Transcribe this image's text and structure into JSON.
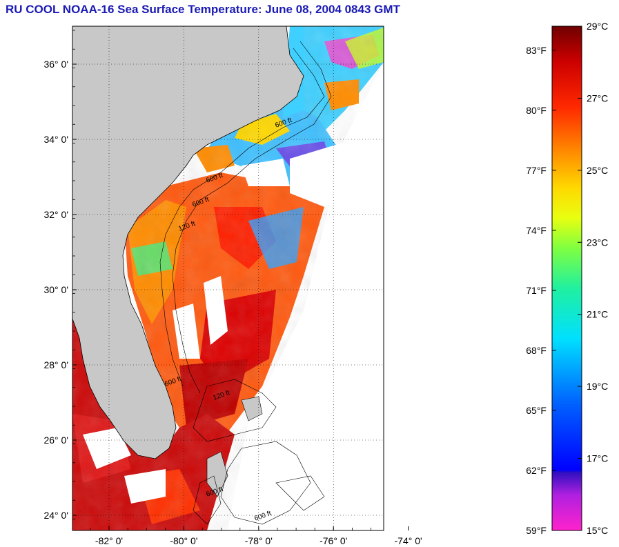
{
  "title": "RU COOL  NOAA-16  Sea Surface Temperature:  June 08, 2004 0843 GMT",
  "map": {
    "lat_ticks": [
      {
        "label": "36° 0'",
        "value": 36
      },
      {
        "label": "34° 0'",
        "value": 34
      },
      {
        "label": "32° 0'",
        "value": 32
      },
      {
        "label": "30° 0'",
        "value": 30
      },
      {
        "label": "28° 0'",
        "value": 28
      },
      {
        "label": "26° 0'",
        "value": 26
      },
      {
        "label": "24° 0'",
        "value": 24
      }
    ],
    "lon_ticks": [
      {
        "label": "-82° 0'",
        "value": -82
      },
      {
        "label": "-80° 0'",
        "value": -80
      },
      {
        "label": "-78° 0'",
        "value": -78
      },
      {
        "label": "-76° 0'",
        "value": -76
      },
      {
        "label": "-74° 0'",
        "value": -74
      }
    ],
    "contour_labels": [
      "600 ft",
      "600 ft",
      "120 ft",
      "600 ft",
      "600 ft",
      "120 ft",
      "600 ft",
      "600 ft"
    ],
    "colors": {
      "land": "#c8c8c8",
      "cloud": "#ffffff",
      "coast": "#000000"
    }
  },
  "colorbar": {
    "fahrenheit": [
      {
        "label": "83°F",
        "value": 83
      },
      {
        "label": "80°F",
        "value": 80
      },
      {
        "label": "77°F",
        "value": 77
      },
      {
        "label": "74°F",
        "value": 74
      },
      {
        "label": "71°F",
        "value": 71
      },
      {
        "label": "68°F",
        "value": 68
      },
      {
        "label": "65°F",
        "value": 65
      },
      {
        "label": "62°F",
        "value": 62
      },
      {
        "label": "59°F",
        "value": 59
      }
    ],
    "celsius": [
      {
        "label": "29°C",
        "value": 29
      },
      {
        "label": "27°C",
        "value": 27
      },
      {
        "label": "25°C",
        "value": 25
      },
      {
        "label": "23°C",
        "value": 23
      },
      {
        "label": "21°C",
        "value": 21
      },
      {
        "label": "19°C",
        "value": 19
      },
      {
        "label": "17°C",
        "value": 17
      },
      {
        "label": "15°C",
        "value": 15
      }
    ],
    "range_c": [
      15,
      29
    ],
    "colors": [
      "#ff22cc",
      "#7a20e0",
      "#1010ff",
      "#0090ff",
      "#00e8ff",
      "#40f080",
      "#c8ff20",
      "#ffe000",
      "#ff8c00",
      "#ff2000",
      "#dd0000",
      "#780000"
    ]
  }
}
